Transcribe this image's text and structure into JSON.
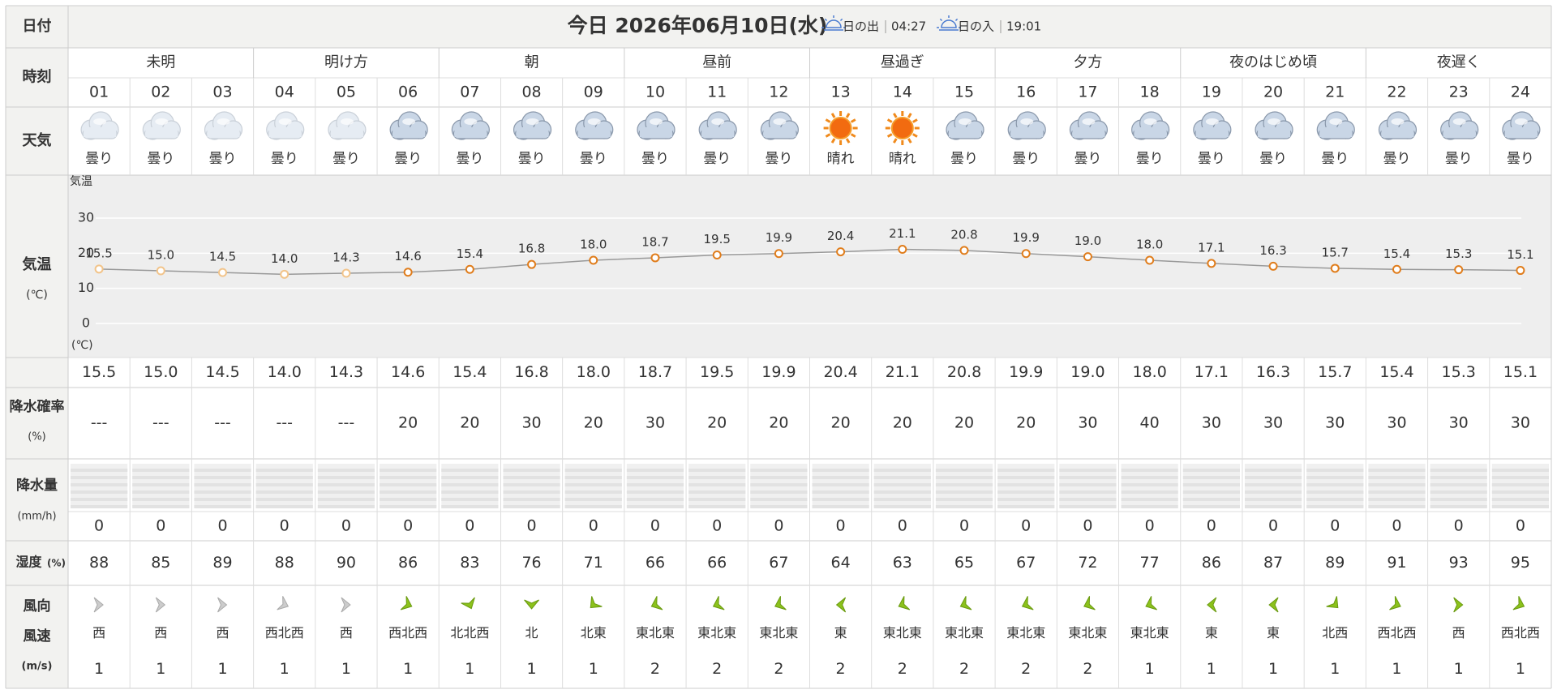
{
  "header": {
    "date_label": "日付",
    "title": "今日 2026年06月10日(水)",
    "sunrise_label": "日の出",
    "sunrise": "04:27",
    "sunset_label": "日の入",
    "sunset": "19:01"
  },
  "row_labels": {
    "time": "時刻",
    "weather": "天気",
    "temperature": "気温",
    "temperature_unit": "(℃)",
    "precip_prob": "降水確率",
    "precip_prob_unit": "(%)",
    "precip_amount": "降水量",
    "precip_amount_unit": "(mm/h)",
    "humidity": "湿度",
    "humidity_unit": "(%)",
    "wind_dir": "風向",
    "wind_speed": "風速",
    "wind_speed_unit": "(m/s)"
  },
  "periods": [
    "未明",
    "明け方",
    "朝",
    "昼前",
    "昼過ぎ",
    "夕方",
    "夜のはじめ頃",
    "夜遅く"
  ],
  "hours": [
    "01",
    "02",
    "03",
    "04",
    "05",
    "06",
    "07",
    "08",
    "09",
    "10",
    "11",
    "12",
    "13",
    "14",
    "15",
    "16",
    "17",
    "18",
    "19",
    "20",
    "21",
    "22",
    "23",
    "24"
  ],
  "weather": [
    "曇り",
    "曇り",
    "曇り",
    "曇り",
    "曇り",
    "曇り",
    "曇り",
    "曇り",
    "曇り",
    "曇り",
    "曇り",
    "曇り",
    "晴れ",
    "晴れ",
    "曇り",
    "曇り",
    "曇り",
    "曇り",
    "曇り",
    "曇り",
    "曇り",
    "曇り",
    "曇り",
    "曇り"
  ],
  "temperature": {
    "axis_label": "気温",
    "unit_label": "(℃)",
    "ylim": [
      -6,
      38
    ],
    "yticks": [
      0,
      10,
      20,
      30
    ],
    "values": [
      15.5,
      15.0,
      14.5,
      14.0,
      14.3,
      14.6,
      15.4,
      16.8,
      18.0,
      18.7,
      19.5,
      19.9,
      20.4,
      21.1,
      20.8,
      19.9,
      19.0,
      18.0,
      17.1,
      16.3,
      15.7,
      15.4,
      15.3,
      15.1
    ],
    "value_labels": [
      "15.5",
      "15.0",
      "14.5",
      "14.0",
      "14.3",
      "14.6",
      "15.4",
      "16.8",
      "18.0",
      "18.7",
      "19.5",
      "19.9",
      "20.4",
      "21.1",
      "20.8",
      "19.9",
      "19.0",
      "18.0",
      "17.1",
      "16.3",
      "15.7",
      "15.4",
      "15.3",
      "15.1"
    ]
  },
  "precip_prob": [
    "---",
    "---",
    "---",
    "---",
    "---",
    20,
    20,
    30,
    20,
    30,
    20,
    20,
    20,
    20,
    20,
    20,
    30,
    40,
    30,
    30,
    30,
    30,
    30,
    30
  ],
  "precip_amount": [
    0,
    0,
    0,
    0,
    0,
    0,
    0,
    0,
    0,
    0,
    0,
    0,
    0,
    0,
    0,
    0,
    0,
    0,
    0,
    0,
    0,
    0,
    0,
    0
  ],
  "humidity": [
    88,
    85,
    89,
    88,
    90,
    86,
    83,
    76,
    71,
    66,
    66,
    67,
    64,
    63,
    65,
    67,
    72,
    77,
    86,
    87,
    89,
    91,
    93,
    95
  ],
  "wind_dir": [
    "西",
    "西",
    "西",
    "西北西",
    "西",
    "西北西",
    "北北西",
    "北",
    "北東",
    "東北東",
    "東北東",
    "東北東",
    "東",
    "東北東",
    "東北東",
    "東北東",
    "東北東",
    "東北東",
    "東",
    "東",
    "北西",
    "西北西",
    "西",
    "西北西"
  ],
  "wind_speed": [
    1,
    1,
    1,
    1,
    1,
    1,
    1,
    1,
    1,
    2,
    2,
    2,
    2,
    2,
    2,
    2,
    2,
    1,
    1,
    1,
    1,
    1,
    1,
    1
  ]
}
